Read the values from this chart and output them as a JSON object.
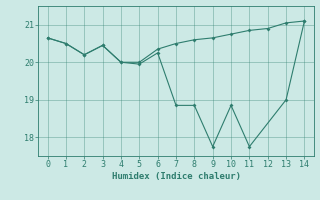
{
  "line1_x": [
    0,
    1,
    2,
    3,
    4,
    5,
    6,
    7,
    8,
    9,
    10,
    11,
    12,
    13,
    14
  ],
  "line1_y": [
    20.65,
    20.5,
    20.2,
    20.45,
    20.0,
    20.0,
    20.35,
    20.5,
    20.6,
    20.65,
    20.75,
    20.85,
    20.9,
    21.05,
    21.1
  ],
  "line2_x": [
    0,
    1,
    2,
    3,
    4,
    5,
    6,
    7,
    8,
    9,
    10,
    11,
    13,
    14
  ],
  "line2_y": [
    20.65,
    20.5,
    20.2,
    20.45,
    20.0,
    19.95,
    20.25,
    18.85,
    18.85,
    17.75,
    18.85,
    17.75,
    19.0,
    21.1
  ],
  "line_color": "#2e7d6e",
  "bg_color": "#cce9e5",
  "xlabel": "Humidex (Indice chaleur)",
  "ylim": [
    17.5,
    21.5
  ],
  "xlim": [
    -0.5,
    14.5
  ],
  "yticks": [
    18,
    19,
    20,
    21
  ],
  "xticks": [
    0,
    1,
    2,
    3,
    4,
    5,
    6,
    7,
    8,
    9,
    10,
    11,
    12,
    13,
    14
  ]
}
